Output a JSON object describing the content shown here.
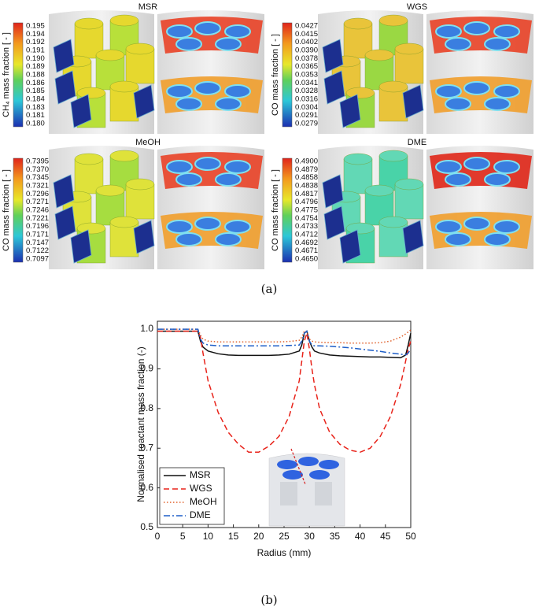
{
  "figure_a": {
    "caption": "(a)",
    "panels": [
      {
        "title": "MSR",
        "colorbar_label": "CH₄ mass fraction [ - ]",
        "colorbar_ticks": [
          "0.195",
          "0.194",
          "0.192",
          "0.191",
          "0.190",
          "0.189",
          "0.188",
          "0.186",
          "0.185",
          "0.184",
          "0.183",
          "0.181",
          "0.180"
        ]
      },
      {
        "title": "WGS",
        "colorbar_label": "CO mass fraction [ - ]",
        "colorbar_ticks": [
          "0.0427",
          "0.0415",
          "0.0402",
          "0.0390",
          "0.0378",
          "0.0365",
          "0.0353",
          "0.0341",
          "0.0328",
          "0.0316",
          "0.0304",
          "0.0291",
          "0.0279"
        ]
      },
      {
        "title": "MeOH",
        "colorbar_label": "CO mass fraction [ - ]",
        "colorbar_ticks": [
          "0.7395",
          "0.7370",
          "0.7345",
          "0.7321",
          "0.7296",
          "0.7271",
          "0.7246",
          "0.7221",
          "0.7196",
          "0.7171",
          "0.7147",
          "0.7122",
          "0.7097"
        ]
      },
      {
        "title": "DME",
        "colorbar_label": "CO mass fraction [ - ]",
        "colorbar_ticks": [
          "0.4900",
          "0.4879",
          "0.4858",
          "0.4838",
          "0.4817",
          "0.4796",
          "0.4775",
          "0.4754",
          "0.4733",
          "0.4712",
          "0.4692",
          "0.4671",
          "0.4650"
        ]
      }
    ]
  },
  "chart_data": {
    "type": "line",
    "caption": "(b)",
    "x_label": "Radius (mm)",
    "y_label": "Normalised reactant mass fraction (-)",
    "x": [
      0,
      2,
      4,
      6,
      8,
      8.5,
      9,
      10,
      12,
      14,
      16,
      18,
      20,
      22,
      24,
      26,
      28,
      28.5,
      29,
      29.5,
      30,
      30.5,
      31,
      32,
      34,
      36,
      38,
      40,
      42,
      44,
      46,
      48,
      49,
      49.5,
      50
    ],
    "series": [
      {
        "name": "MSR",
        "color": "#111111",
        "style": "solid",
        "values": [
          0.995,
          0.995,
          0.995,
          0.995,
          0.995,
          0.97,
          0.955,
          0.945,
          0.938,
          0.935,
          0.934,
          0.934,
          0.934,
          0.934,
          0.935,
          0.937,
          0.945,
          0.96,
          0.99,
          0.995,
          0.97,
          0.955,
          0.945,
          0.94,
          0.935,
          0.933,
          0.932,
          0.931,
          0.93,
          0.93,
          0.929,
          0.928,
          0.935,
          0.96,
          0.99
        ]
      },
      {
        "name": "WGS",
        "color": "#e8231a",
        "style": "dashed",
        "values": [
          0.995,
          0.995,
          0.995,
          0.995,
          0.995,
          0.98,
          0.94,
          0.87,
          0.79,
          0.74,
          0.71,
          0.69,
          0.69,
          0.705,
          0.73,
          0.78,
          0.87,
          0.92,
          0.97,
          0.99,
          0.95,
          0.9,
          0.86,
          0.8,
          0.74,
          0.71,
          0.695,
          0.69,
          0.7,
          0.73,
          0.78,
          0.86,
          0.92,
          0.95,
          0.97
        ]
      },
      {
        "name": "MeOH",
        "color": "#e0602a",
        "style": "dotted",
        "values": [
          1,
          1,
          1,
          1,
          1,
          0.985,
          0.975,
          0.97,
          0.968,
          0.968,
          0.968,
          0.968,
          0.968,
          0.968,
          0.968,
          0.969,
          0.972,
          0.98,
          0.995,
          0.995,
          0.975,
          0.97,
          0.968,
          0.967,
          0.966,
          0.966,
          0.965,
          0.965,
          0.965,
          0.966,
          0.97,
          0.98,
          0.988,
          0.993,
          0.998
        ]
      },
      {
        "name": "DME",
        "color": "#1f5fc8",
        "style": "dashdot",
        "values": [
          1,
          1,
          1,
          1,
          1,
          0.975,
          0.965,
          0.96,
          0.958,
          0.958,
          0.958,
          0.958,
          0.958,
          0.958,
          0.958,
          0.959,
          0.96,
          0.97,
          0.99,
          0.995,
          0.97,
          0.96,
          0.958,
          0.958,
          0.957,
          0.955,
          0.953,
          0.95,
          0.947,
          0.944,
          0.94,
          0.937,
          0.935,
          0.94,
          0.95
        ]
      }
    ],
    "xlim": [
      0,
      50
    ],
    "xticks": [
      0,
      5,
      10,
      15,
      20,
      25,
      30,
      35,
      40,
      45,
      50
    ],
    "ylim": [
      0.5,
      1.02
    ],
    "yticks": [
      0.5,
      0.6,
      0.7,
      0.8,
      0.9,
      {
        "value": 1,
        "label": "1.0"
      }
    ],
    "legend": "lower-left"
  }
}
